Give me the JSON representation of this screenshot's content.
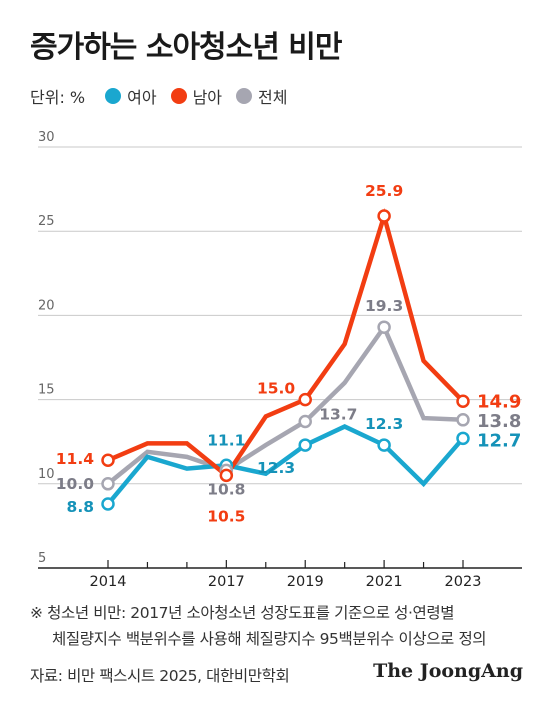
{
  "title": "증가하는 소아청소년 비만",
  "legend": {
    "unit_label": "단위: %",
    "items": [
      {
        "label": "여아",
        "color": "#1aa7cf"
      },
      {
        "label": "남아",
        "color": "#f23d12"
      },
      {
        "label": "전체",
        "color": "#a6a6b1"
      }
    ]
  },
  "note": {
    "line1": "※ 청소년 비만: 2017년 소아청소년 성장도표를 기준으로 성·연령별",
    "line2": "체질량지수 백분위수를 사용해 체질량지수 95백분위수 이상으로 정의"
  },
  "source": "자료: 비만 팩스시트 2025, 대한비만학회",
  "brand": "The JoongAng",
  "chart_data": {
    "type": "line",
    "x": [
      2014,
      2015,
      2016,
      2017,
      2018,
      2019,
      2020,
      2021,
      2022,
      2023
    ],
    "xticks": [
      "2014",
      "2017",
      "2019",
      "2021",
      "2023"
    ],
    "yticks": [
      "5",
      "10",
      "15",
      "20",
      "25",
      "30"
    ],
    "ylim": [
      5,
      30
    ],
    "grid": true,
    "series": [
      {
        "name": "여아",
        "color": "#1aa7cf",
        "values": [
          8.8,
          11.6,
          10.9,
          11.1,
          10.6,
          12.3,
          13.4,
          12.3,
          10.0,
          12.7
        ]
      },
      {
        "name": "남아",
        "color": "#f23d12",
        "values": [
          11.4,
          12.4,
          12.4,
          10.5,
          14.0,
          15.0,
          18.3,
          25.9,
          17.3,
          14.9
        ]
      },
      {
        "name": "전체",
        "color": "#a6a6b1",
        "values": [
          10.0,
          11.9,
          11.6,
          10.8,
          12.3,
          13.7,
          16.0,
          19.3,
          13.9,
          13.8
        ]
      }
    ],
    "labels": [
      {
        "series": 1,
        "index": 0,
        "text": "11.4"
      },
      {
        "series": 2,
        "index": 0,
        "text": "10.0"
      },
      {
        "series": 0,
        "index": 0,
        "text": "8.8"
      },
      {
        "series": 0,
        "index": 3,
        "text": "11.1"
      },
      {
        "series": 2,
        "index": 3,
        "text": "10.8"
      },
      {
        "series": 1,
        "index": 3,
        "text": "10.5"
      },
      {
        "series": 1,
        "index": 5,
        "text": "15.0"
      },
      {
        "series": 2,
        "index": 5,
        "text": "13.7"
      },
      {
        "series": 0,
        "index": 5,
        "text": "12.3"
      },
      {
        "series": 1,
        "index": 7,
        "text": "25.9"
      },
      {
        "series": 2,
        "index": 7,
        "text": "19.3"
      },
      {
        "series": 0,
        "index": 7,
        "text": "12.3"
      },
      {
        "series": 1,
        "index": 9,
        "text": "14.9"
      },
      {
        "series": 2,
        "index": 9,
        "text": "13.8"
      },
      {
        "series": 0,
        "index": 9,
        "text": "12.7"
      }
    ]
  }
}
